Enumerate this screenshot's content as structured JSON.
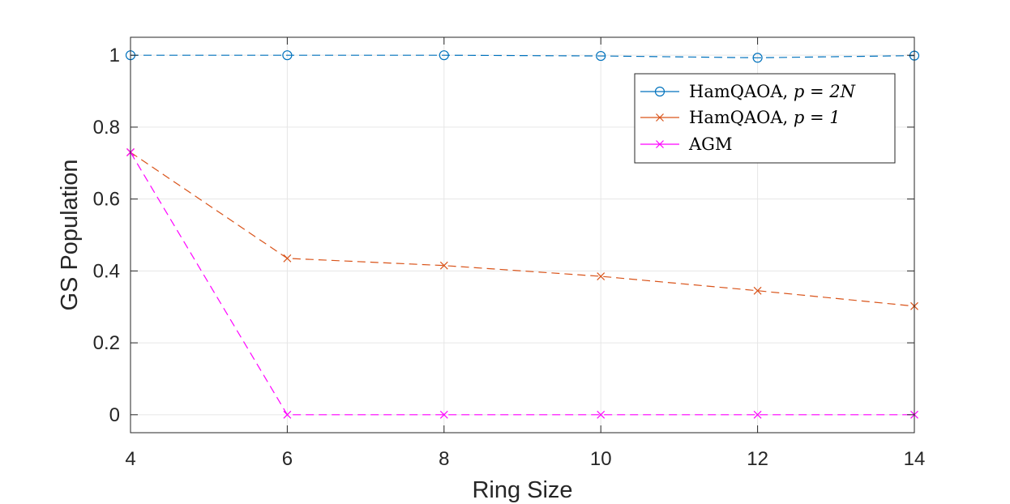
{
  "chart_data": {
    "type": "line",
    "title": "",
    "xlabel": "Ring Size",
    "ylabel": "GS Population",
    "xlim": [
      4,
      14
    ],
    "ylim": [
      -0.05,
      1.05
    ],
    "xticks": [
      4,
      6,
      8,
      10,
      12,
      14
    ],
    "yticks": [
      0,
      0.2,
      0.4,
      0.6,
      0.8,
      1
    ],
    "xtick_labels": [
      "4",
      "6",
      "8",
      "10",
      "12",
      "14"
    ],
    "ytick_labels": [
      "0",
      "0.2",
      "0.4",
      "0.6",
      "0.8",
      "1"
    ],
    "grid": true,
    "legend_position": "top-right",
    "x": [
      4,
      6,
      8,
      10,
      12,
      14
    ],
    "series": [
      {
        "name": "HamQAOA, p = 2N",
        "name_prefix": "HamQAOA, ",
        "name_math": "p = 2N",
        "color": "#0072BD",
        "marker": "circle",
        "line_style": "dashed",
        "values": [
          1.0,
          1.0,
          1.0,
          0.998,
          0.993,
          0.999
        ]
      },
      {
        "name": "HamQAOA, p = 1",
        "name_prefix": "HamQAOA, ",
        "name_math": "p = 1",
        "color": "#D95319",
        "marker": "x",
        "line_style": "dashed",
        "values": [
          0.73,
          0.435,
          0.415,
          0.385,
          0.345,
          0.302
        ]
      },
      {
        "name": "AGM",
        "name_prefix": "AGM",
        "name_math": "",
        "color": "#FF00FF",
        "marker": "x",
        "line_style": "dashed",
        "values": [
          0.73,
          0.0,
          0.0,
          0.0,
          0.0,
          0.0
        ]
      }
    ]
  }
}
